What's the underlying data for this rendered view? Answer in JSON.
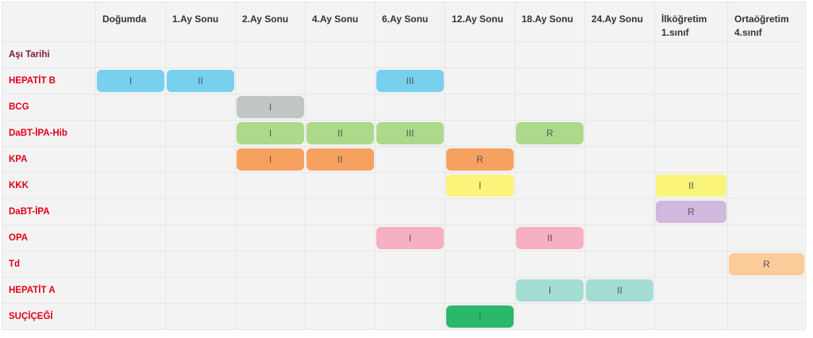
{
  "columns": [
    "Doğumda",
    "1.Ay Sonu",
    "2.Ay Sonu",
    "4.Ay Sonu",
    "6.Ay Sonu",
    "12.Ay Sonu",
    "18.Ay Sonu",
    "24.Ay Sonu",
    "İlköğretim 1.sınıf",
    "Ortaöğretim 4.sınıf"
  ],
  "rows": [
    {
      "label": "Aşı Tarihi",
      "style": "dark",
      "doses": {}
    },
    {
      "label": "HEPATİT B",
      "color": "#77d0ee",
      "doses": {
        "0": "I",
        "1": "II",
        "4": "III"
      }
    },
    {
      "label": "BCG",
      "color": "#c1c5c3",
      "doses": {
        "2": "I"
      }
    },
    {
      "label": "DaBT-İPA-Hib",
      "color": "#acd98a",
      "doses": {
        "2": "I",
        "3": "II",
        "4": "III",
        "6": "R"
      }
    },
    {
      "label": "KPA",
      "color": "#f7a160",
      "doses": {
        "2": "I",
        "3": "II",
        "5": "R"
      }
    },
    {
      "label": "KKK",
      "color": "#fbf47a",
      "doses": {
        "5": "I",
        "8": "II"
      }
    },
    {
      "label": "DaBT-İPA",
      "color": "#d1b8df",
      "doses": {
        "8": "R"
      }
    },
    {
      "label": "OPA",
      "color": "#f7afc2",
      "doses": {
        "4": "I",
        "6": "II"
      }
    },
    {
      "label": "Td",
      "color": "#fbcb9a",
      "doses": {
        "9": "R"
      }
    },
    {
      "label": "HEPATİT A",
      "color": "#a3ddd4",
      "doses": {
        "6": "I",
        "7": "II"
      }
    },
    {
      "label": "SUÇİÇEĞİ",
      "color": "#2ab96b",
      "doses": {
        "5": "I"
      }
    }
  ]
}
